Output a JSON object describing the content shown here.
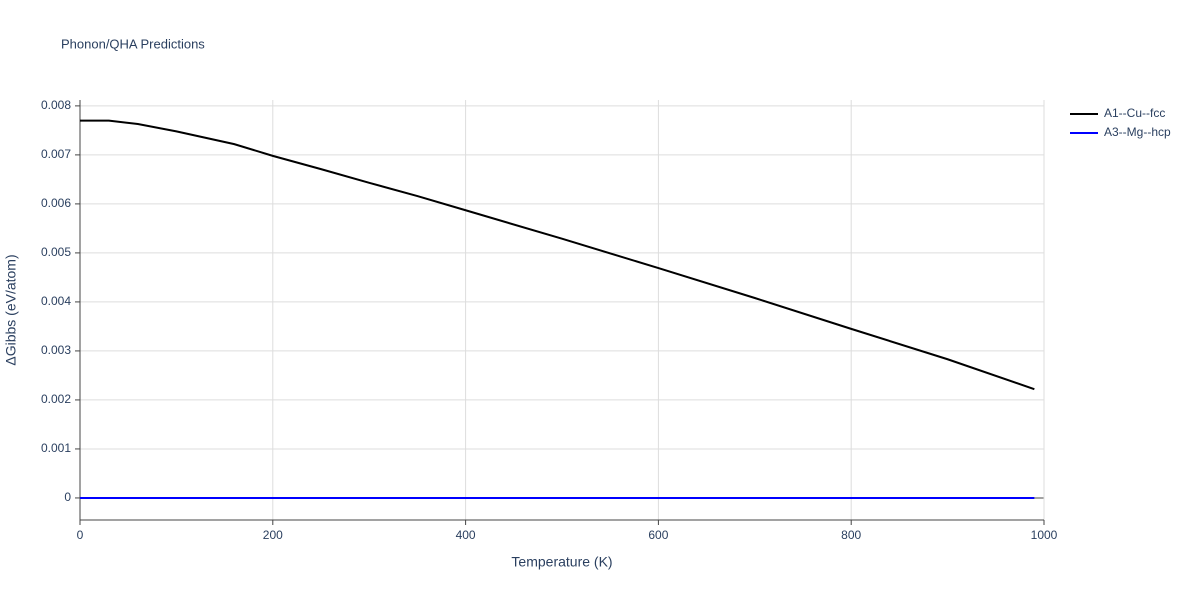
{
  "chart_data": {
    "type": "line",
    "title": "Phonon/QHA Predictions",
    "x_label": "Temperature (K)",
    "y_label": "ΔGibbs (eV/atom)",
    "xlim": [
      0,
      1000
    ],
    "xticks": [
      0,
      200,
      400,
      600,
      800,
      1000
    ],
    "ylim": [
      -0.00045,
      0.00812
    ],
    "yticks": [
      0,
      0.001,
      0.002,
      0.003,
      0.004,
      0.005,
      0.006,
      0.007,
      0.008
    ],
    "grid": true,
    "legend": "top-right",
    "series": [
      {
        "name": "A1--Cu--fcc",
        "color": "#000000",
        "x": [
          0,
          30,
          60,
          100,
          160,
          200,
          250,
          300,
          350,
          400,
          500,
          600,
          700,
          800,
          900,
          990
        ],
        "values": [
          0.0077,
          0.0077,
          0.00763,
          0.00748,
          0.00722,
          0.00698,
          0.00671,
          0.00643,
          0.00616,
          0.00587,
          0.00529,
          0.00469,
          0.00408,
          0.00345,
          0.00283,
          0.00222
        ]
      },
      {
        "name": "A3--Mg--hcp",
        "color": "#0000ff",
        "x": [
          0,
          990
        ],
        "values": [
          0,
          0
        ]
      }
    ]
  }
}
